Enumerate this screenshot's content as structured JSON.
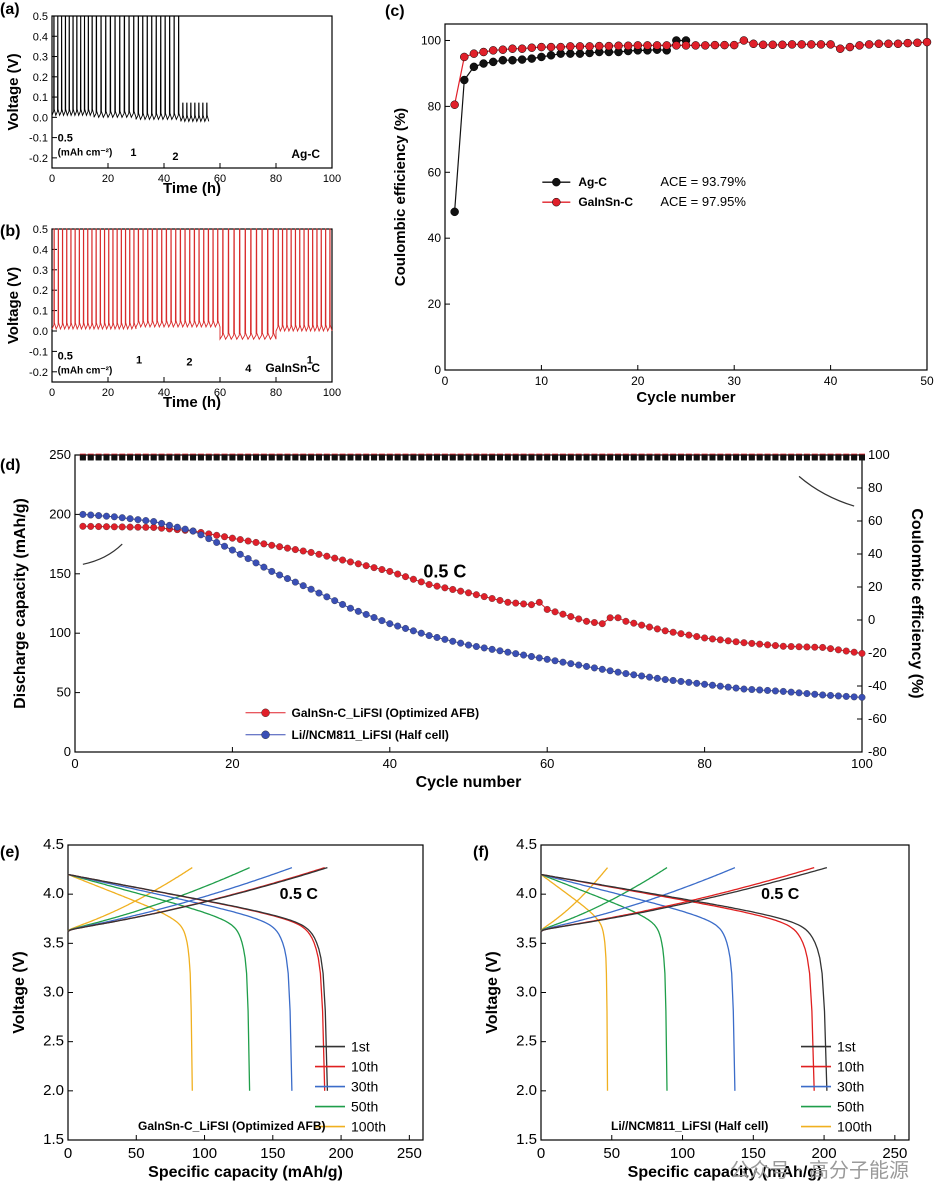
{
  "watermark": "公众号 · 高分子能源",
  "chart_data": [
    {
      "id": "a",
      "panel_label": "(a)",
      "type": "line",
      "xlabel": "Time (h)",
      "ylabel": "Voltage (V)",
      "xlim": [
        0,
        100
      ],
      "ylim": [
        -0.25,
        0.5
      ],
      "xticks": [
        0,
        20,
        40,
        60,
        80,
        100
      ],
      "yticks": [
        -0.2,
        -0.1,
        0.0,
        0.1,
        0.2,
        0.3,
        0.4,
        0.5
      ],
      "color": "#000000",
      "sample_label": "Ag-C",
      "current_label": "(mAh cm⁻²)",
      "annotations": [
        {
          "text": "0.5",
          "x": 2,
          "y": -0.12
        },
        {
          "text": "1",
          "x": 28,
          "y": -0.19
        },
        {
          "text": "2",
          "x": 43,
          "y": -0.21
        }
      ],
      "segments": [
        {
          "t0": 0,
          "t1": 15,
          "cycles": 11,
          "base": 0.03,
          "peak": 0.5
        },
        {
          "t0": 15,
          "t1": 30,
          "cycles": 9,
          "base": 0.02,
          "peak": 0.5
        },
        {
          "t0": 30,
          "t1": 46,
          "cycles": 10,
          "base": 0.01,
          "peak": 0.5
        },
        {
          "t0": 46,
          "t1": 56,
          "cycles": 7,
          "base": 0.0,
          "peak": 0.07
        }
      ]
    },
    {
      "id": "b",
      "panel_label": "(b)",
      "type": "line",
      "xlabel": "Time (h)",
      "ylabel": "Voltage (V)",
      "xlim": [
        0,
        100
      ],
      "ylim": [
        -0.25,
        0.5
      ],
      "xticks": [
        0,
        20,
        40,
        60,
        80,
        100
      ],
      "yticks": [
        -0.2,
        -0.1,
        0.0,
        0.1,
        0.2,
        0.3,
        0.4,
        0.5
      ],
      "color": "#d92b2b",
      "sample_label": "GaInSn-C",
      "current_label": "(mAh cm⁻²)",
      "annotations": [
        {
          "text": "0.5",
          "x": 2,
          "y": -0.14
        },
        {
          "text": "1",
          "x": 30,
          "y": -0.16
        },
        {
          "text": "2",
          "x": 48,
          "y": -0.17
        },
        {
          "text": "4",
          "x": 69,
          "y": -0.2
        },
        {
          "text": "1",
          "x": 91,
          "y": -0.16
        }
      ],
      "segments": [
        {
          "t0": 0,
          "t1": 30,
          "cycles": 20,
          "base": 0.03,
          "peak": 0.5
        },
        {
          "t0": 30,
          "t1": 60,
          "cycles": 18,
          "base": 0.04,
          "peak": 0.5
        },
        {
          "t0": 60,
          "t1": 80,
          "cycles": 10,
          "base": -0.02,
          "peak": 0.5
        },
        {
          "t0": 80,
          "t1": 100,
          "cycles": 13,
          "base": 0.02,
          "peak": 0.5
        }
      ]
    },
    {
      "id": "c",
      "panel_label": "(c)",
      "type": "scatter",
      "xlabel": "Cycle number",
      "ylabel": "Coulombic efficiency (%)",
      "xlim": [
        0,
        50
      ],
      "ylim": [
        0,
        105
      ],
      "xticks": [
        0,
        10,
        20,
        30,
        40,
        50
      ],
      "yticks": [
        0,
        20,
        40,
        60,
        80,
        100
      ],
      "legend_position": "center",
      "series": [
        {
          "name": "Ag-C",
          "ace": "ACE = 93.79%",
          "color": "#111111",
          "x": [
            1,
            2,
            3,
            4,
            5,
            6,
            7,
            8,
            9,
            10,
            11,
            12,
            13,
            14,
            15,
            16,
            17,
            18,
            19,
            20,
            21,
            22,
            23,
            24,
            25
          ],
          "y": [
            48,
            88,
            92,
            93,
            93.5,
            94,
            94,
            94.2,
            94.5,
            95,
            95.5,
            96,
            96,
            96,
            96.2,
            96.5,
            96.5,
            96.5,
            96.8,
            97,
            97,
            97.2,
            97,
            100,
            100
          ]
        },
        {
          "name": "GaInSn-C",
          "ace": "ACE = 97.95%",
          "color": "#e0202a",
          "x": [
            1,
            2,
            3,
            4,
            5,
            6,
            7,
            8,
            9,
            10,
            11,
            12,
            13,
            14,
            15,
            16,
            17,
            18,
            19,
            20,
            21,
            22,
            23,
            24,
            25,
            26,
            27,
            28,
            29,
            30,
            31,
            32,
            33,
            34,
            35,
            36,
            37,
            38,
            39,
            40,
            41,
            42,
            43,
            44,
            45,
            46,
            47,
            48,
            49,
            50
          ],
          "y": [
            80.5,
            95,
            96,
            96.5,
            97,
            97.2,
            97.5,
            97.5,
            97.8,
            98,
            98,
            98,
            98.2,
            98.2,
            98.2,
            98.3,
            98.3,
            98.4,
            98.4,
            98.5,
            98.5,
            98.5,
            98.5,
            98.5,
            98.5,
            98.5,
            98.5,
            98.6,
            98.6,
            98.6,
            100,
            99,
            98.7,
            98.7,
            98.7,
            98.8,
            98.8,
            98.8,
            98.8,
            98.8,
            97.5,
            98,
            98.5,
            98.8,
            99,
            99,
            99,
            99.2,
            99.3,
            99.5
          ]
        }
      ]
    },
    {
      "id": "d",
      "panel_label": "(d)",
      "type": "scatter",
      "xlabel": "Cycle number",
      "ylabel": "Discharge capacity (mAh/g)",
      "ylabel_right": "Coulombic efficiency (%)",
      "annotation": "0.5 C",
      "xlim": [
        0,
        100
      ],
      "ylim": [
        0,
        250
      ],
      "ylim_right": [
        -80,
        100
      ],
      "xticks": [
        0,
        20,
        40,
        60,
        80,
        100
      ],
      "yticks": [
        0,
        50,
        100,
        150,
        200,
        250
      ],
      "yticks_right": [
        -80,
        -60,
        -40,
        -20,
        0,
        20,
        40,
        60,
        80,
        100
      ],
      "legend_position": "bottom-left",
      "series": [
        {
          "name": "GaInSn-C_LiFSI (Optimized AFB)",
          "color": "#e0202a",
          "capacity_knots": [
            [
              1,
              190
            ],
            [
              10,
              189
            ],
            [
              15,
              186
            ],
            [
              20,
              180
            ],
            [
              30,
              168
            ],
            [
              40,
              152
            ],
            [
              45,
              141
            ],
            [
              50,
              134
            ],
            [
              55,
              126
            ],
            [
              58,
              124
            ],
            [
              59,
              126
            ],
            [
              60,
              120
            ],
            [
              65,
              110
            ],
            [
              67,
              108
            ],
            [
              68,
              113
            ],
            [
              69,
              113
            ],
            [
              70,
              110
            ],
            [
              75,
              102
            ],
            [
              80,
              96
            ],
            [
              85,
              92
            ],
            [
              90,
              89
            ],
            [
              95,
              88
            ],
            [
              100,
              83
            ]
          ],
          "ce": 99
        },
        {
          "name": "Li//NCM811_LiFSI (Half cell)",
          "color": "#3a4fb5",
          "capacity_knots": [
            [
              1,
              200
            ],
            [
              5,
              198
            ],
            [
              10,
              194
            ],
            [
              15,
              186
            ],
            [
              20,
              170
            ],
            [
              25,
              152
            ],
            [
              30,
              137
            ],
            [
              35,
              121
            ],
            [
              40,
              108
            ],
            [
              45,
              98
            ],
            [
              50,
              90
            ],
            [
              55,
              84
            ],
            [
              60,
              78
            ],
            [
              65,
              72
            ],
            [
              70,
              66
            ],
            [
              75,
              61
            ],
            [
              80,
              57
            ],
            [
              85,
              53
            ],
            [
              90,
              51
            ],
            [
              95,
              48
            ],
            [
              100,
              46
            ]
          ],
          "ce": 98.5
        }
      ]
    },
    {
      "id": "e",
      "panel_label": "(e)",
      "type": "line",
      "xlabel": "Specific capacity (mAh/g)",
      "ylabel": "Voltage (V)",
      "annotation": "0.5 C",
      "caption": "GaInSn-C_LiFSI (Optimized AFB)",
      "xlim": [
        0,
        260
      ],
      "ylim": [
        1.5,
        4.5
      ],
      "xticks": [
        0,
        50,
        100,
        150,
        200,
        250
      ],
      "yticks": [
        1.5,
        2.0,
        2.5,
        3.0,
        3.5,
        4.0,
        4.5
      ],
      "legend_position": "bottom-right",
      "series": [
        {
          "name": "1st",
          "color": "#333333",
          "capacity": 190
        },
        {
          "name": "10th",
          "color": "#e02020",
          "capacity": 188
        },
        {
          "name": "30th",
          "color": "#3b6cc9",
          "capacity": 164
        },
        {
          "name": "50th",
          "color": "#1f9e4a",
          "capacity": 133
        },
        {
          "name": "100th",
          "color": "#f0b020",
          "capacity": 91
        }
      ]
    },
    {
      "id": "f",
      "panel_label": "(f)",
      "type": "line",
      "xlabel": "Specific capacity (mAh/g)",
      "ylabel": "Voltage (V)",
      "annotation": "0.5 C",
      "caption": "Li//NCM811_LiFSI (Half cell)",
      "xlim": [
        0,
        260
      ],
      "ylim": [
        1.5,
        4.5
      ],
      "xticks": [
        0,
        50,
        100,
        150,
        200,
        250
      ],
      "yticks": [
        1.5,
        2.0,
        2.5,
        3.0,
        3.5,
        4.0,
        4.5
      ],
      "legend_position": "bottom-right",
      "series": [
        {
          "name": "1st",
          "color": "#333333",
          "capacity": 202
        },
        {
          "name": "10th",
          "color": "#e02020",
          "capacity": 193
        },
        {
          "name": "30th",
          "color": "#3b6cc9",
          "capacity": 137
        },
        {
          "name": "50th",
          "color": "#1f9e4a",
          "capacity": 89
        },
        {
          "name": "100th",
          "color": "#f0b020",
          "capacity": 47
        }
      ]
    }
  ]
}
